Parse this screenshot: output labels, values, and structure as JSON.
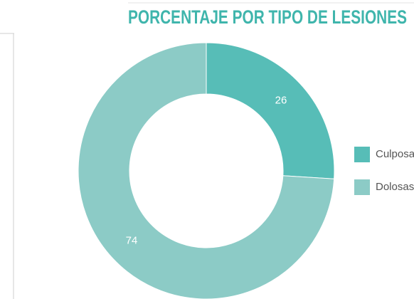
{
  "chart_data": {
    "type": "pie",
    "title": "PORCENTAJE POR TIPO DE LESIONES",
    "categories": [
      "Culposas",
      "Dolosas"
    ],
    "values": [
      26,
      74
    ],
    "colors": [
      "#57bdb7",
      "#8ccbc6"
    ],
    "donut": true,
    "legend": "right"
  }
}
